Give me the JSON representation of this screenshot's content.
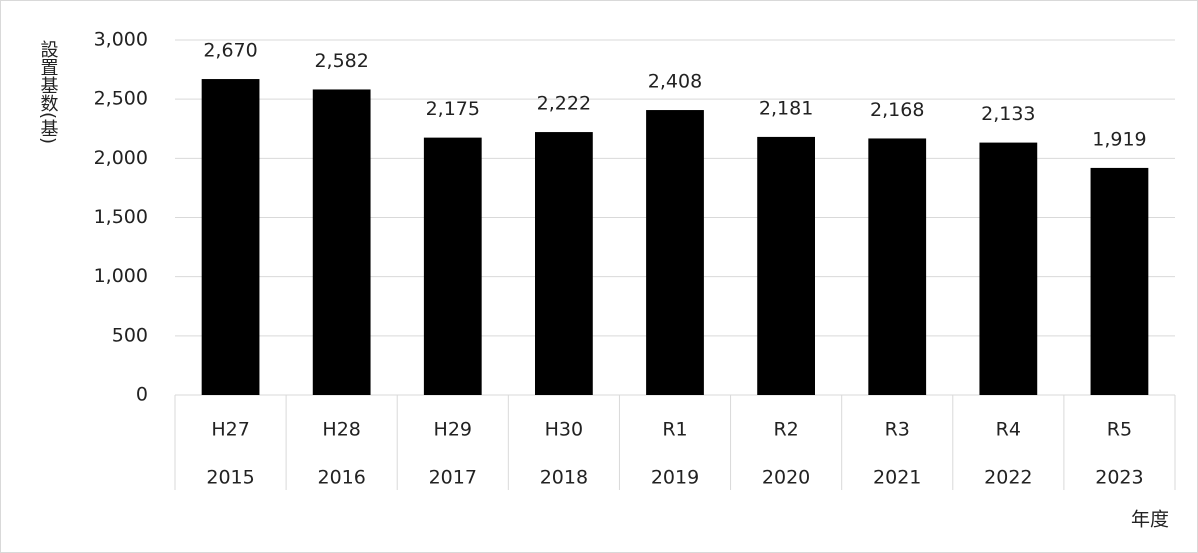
{
  "chart_data": {
    "type": "bar",
    "y_axis_label": "設置基数(基)",
    "x_axis_label": "年度",
    "categories": [
      "H27",
      "H28",
      "H29",
      "H30",
      "R1",
      "R2",
      "R3",
      "R4",
      "R5"
    ],
    "years": [
      "2015",
      "2016",
      "2017",
      "2018",
      "2019",
      "2020",
      "2021",
      "2022",
      "2023"
    ],
    "values": [
      2670,
      2582,
      2175,
      2222,
      2408,
      2181,
      2168,
      2133,
      1919
    ],
    "value_labels": [
      "2,670",
      "2,582",
      "2,175",
      "2,222",
      "2,408",
      "2,181",
      "2,168",
      "2,133",
      "1,919"
    ],
    "color": "#000000",
    "ylim": [
      0,
      3000
    ],
    "yticks": [
      0,
      500,
      {
        "value": 1000,
        "label": "1,000"
      },
      {
        "value": 1500,
        "label": "1,500"
      },
      {
        "value": 2000,
        "label": "2,000"
      },
      {
        "value": 2500,
        "label": "2,500"
      },
      {
        "value": 3000,
        "label": "3,000"
      }
    ],
    "grid": true
  }
}
